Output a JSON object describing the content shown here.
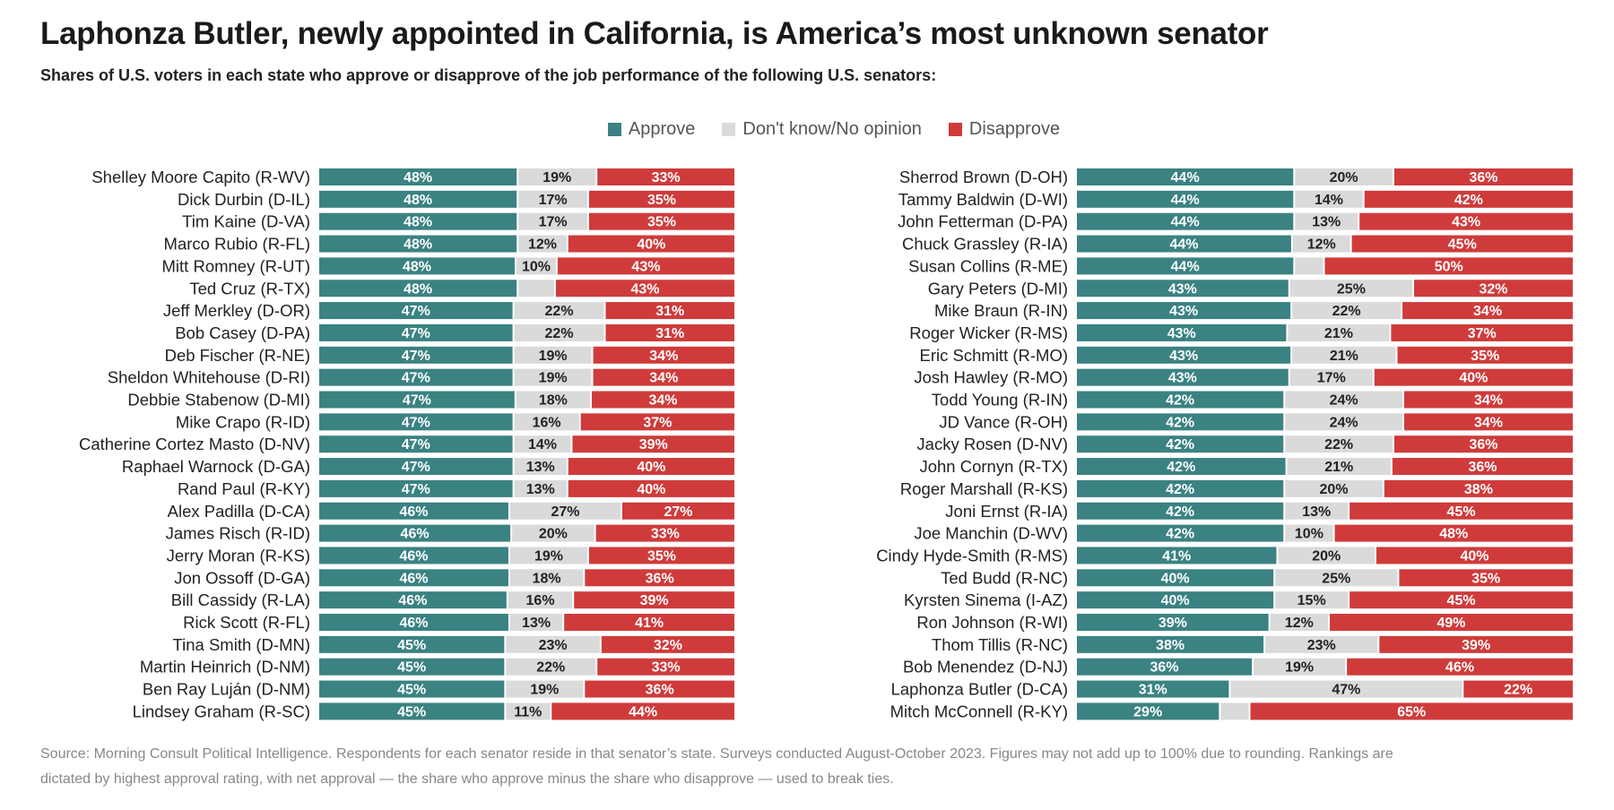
{
  "title": "Laphonza Butler, newly appointed in California, is America’s most unknown senator",
  "subtitle": "Shares of U.S. voters in each state who approve or disapprove of the job performance of the following U.S. senators:",
  "legend": [
    {
      "label": "Approve",
      "color": "#3b8282"
    },
    {
      "label": "Don't know/No opinion",
      "color": "#dadada"
    },
    {
      "label": "Disapprove",
      "color": "#cf3b3b"
    }
  ],
  "footer": "Source: Morning Consult Political Intelligence. Respondents for each senator reside in that senator’s state. Surveys conducted August-October 2023. Figures may not add up to 100% due to rounding. Rankings are dictated by highest approval rating, with net approval — the share who approve minus the share who disapprove — used to break ties.",
  "chart_data": {
    "type": "bar",
    "orientation": "horizontal",
    "stacked": "100%",
    "series_order": [
      "Approve",
      "Don't know/No opinion",
      "Disapprove"
    ],
    "panels": [
      {
        "rows": [
          {
            "senator": "Shelley Moore Capito (R-WV)",
            "approve": 48,
            "dk": 19,
            "disapprove": 33
          },
          {
            "senator": "Dick Durbin (D-IL)",
            "approve": 48,
            "dk": 17,
            "disapprove": 35
          },
          {
            "senator": "Tim Kaine (D-VA)",
            "approve": 48,
            "dk": 17,
            "disapprove": 35
          },
          {
            "senator": "Marco Rubio (R-FL)",
            "approve": 48,
            "dk": 12,
            "disapprove": 40
          },
          {
            "senator": "Mitt Romney (R-UT)",
            "approve": 48,
            "dk": 10,
            "disapprove": 43
          },
          {
            "senator": "Ted Cruz (R-TX)",
            "approve": 48,
            "dk": 9,
            "disapprove": 43
          },
          {
            "senator": "Jeff Merkley (D-OR)",
            "approve": 47,
            "dk": 22,
            "disapprove": 31
          },
          {
            "senator": "Bob Casey (D-PA)",
            "approve": 47,
            "dk": 22,
            "disapprove": 31
          },
          {
            "senator": "Deb Fischer (R-NE)",
            "approve": 47,
            "dk": 19,
            "disapprove": 34
          },
          {
            "senator": "Sheldon Whitehouse (D-RI)",
            "approve": 47,
            "dk": 19,
            "disapprove": 34
          },
          {
            "senator": "Debbie Stabenow (D-MI)",
            "approve": 47,
            "dk": 18,
            "disapprove": 34
          },
          {
            "senator": "Mike Crapo (R-ID)",
            "approve": 47,
            "dk": 16,
            "disapprove": 37
          },
          {
            "senator": "Catherine Cortez Masto (D-NV)",
            "approve": 47,
            "dk": 14,
            "disapprove": 39
          },
          {
            "senator": "Raphael Warnock (D-GA)",
            "approve": 47,
            "dk": 13,
            "disapprove": 40
          },
          {
            "senator": "Rand Paul (R-KY)",
            "approve": 47,
            "dk": 13,
            "disapprove": 40
          },
          {
            "senator": "Alex Padilla (D-CA)",
            "approve": 46,
            "dk": 27,
            "disapprove": 27
          },
          {
            "senator": "James Risch (R-ID)",
            "approve": 46,
            "dk": 20,
            "disapprove": 33
          },
          {
            "senator": "Jerry Moran (R-KS)",
            "approve": 46,
            "dk": 19,
            "disapprove": 35
          },
          {
            "senator": "Jon Ossoff (D-GA)",
            "approve": 46,
            "dk": 18,
            "disapprove": 36
          },
          {
            "senator": "Bill Cassidy (R-LA)",
            "approve": 46,
            "dk": 16,
            "disapprove": 39
          },
          {
            "senator": "Rick Scott (R-FL)",
            "approve": 46,
            "dk": 13,
            "disapprove": 41
          },
          {
            "senator": "Tina Smith (D-MN)",
            "approve": 45,
            "dk": 23,
            "disapprove": 32
          },
          {
            "senator": "Martin Heinrich (D-NM)",
            "approve": 45,
            "dk": 22,
            "disapprove": 33
          },
          {
            "senator": "Ben Ray Luján (D-NM)",
            "approve": 45,
            "dk": 19,
            "disapprove": 36
          },
          {
            "senator": "Lindsey Graham (R-SC)",
            "approve": 45,
            "dk": 11,
            "disapprove": 44
          }
        ]
      },
      {
        "rows": [
          {
            "senator": "Sherrod Brown (D-OH)",
            "approve": 44,
            "dk": 20,
            "disapprove": 36
          },
          {
            "senator": "Tammy Baldwin (D-WI)",
            "approve": 44,
            "dk": 14,
            "disapprove": 42
          },
          {
            "senator": "John Fetterman (D-PA)",
            "approve": 44,
            "dk": 13,
            "disapprove": 43
          },
          {
            "senator": "Chuck Grassley (R-IA)",
            "approve": 44,
            "dk": 12,
            "disapprove": 45
          },
          {
            "senator": "Susan Collins (R-ME)",
            "approve": 44,
            "dk": 6,
            "disapprove": 50
          },
          {
            "senator": "Gary Peters (D-MI)",
            "approve": 43,
            "dk": 25,
            "disapprove": 32
          },
          {
            "senator": "Mike Braun (R-IN)",
            "approve": 43,
            "dk": 22,
            "disapprove": 34
          },
          {
            "senator": "Roger Wicker (R-MS)",
            "approve": 43,
            "dk": 21,
            "disapprove": 37
          },
          {
            "senator": "Eric Schmitt (R-MO)",
            "approve": 43,
            "dk": 21,
            "disapprove": 35
          },
          {
            "senator": "Josh Hawley (R-MO)",
            "approve": 43,
            "dk": 17,
            "disapprove": 40
          },
          {
            "senator": "Todd Young (R-IN)",
            "approve": 42,
            "dk": 24,
            "disapprove": 34
          },
          {
            "senator": "JD Vance (R-OH)",
            "approve": 42,
            "dk": 24,
            "disapprove": 34
          },
          {
            "senator": "Jacky Rosen (D-NV)",
            "approve": 42,
            "dk": 22,
            "disapprove": 36
          },
          {
            "senator": "John Cornyn (R-TX)",
            "approve": 42,
            "dk": 21,
            "disapprove": 36
          },
          {
            "senator": "Roger Marshall (R-KS)",
            "approve": 42,
            "dk": 20,
            "disapprove": 38
          },
          {
            "senator": "Joni Ernst (R-IA)",
            "approve": 42,
            "dk": 13,
            "disapprove": 45
          },
          {
            "senator": "Joe Manchin (D-WV)",
            "approve": 42,
            "dk": 10,
            "disapprove": 48
          },
          {
            "senator": "Cindy Hyde-Smith (R-MS)",
            "approve": 41,
            "dk": 20,
            "disapprove": 40
          },
          {
            "senator": "Ted Budd (R-NC)",
            "approve": 40,
            "dk": 25,
            "disapprove": 35
          },
          {
            "senator": "Kyrsten Sinema (I-AZ)",
            "approve": 40,
            "dk": 15,
            "disapprove": 45
          },
          {
            "senator": "Ron Johnson (R-WI)",
            "approve": 39,
            "dk": 12,
            "disapprove": 49
          },
          {
            "senator": "Thom Tillis (R-NC)",
            "approve": 38,
            "dk": 23,
            "disapprove": 39
          },
          {
            "senator": "Bob Menendez (D-NJ)",
            "approve": 36,
            "dk": 19,
            "disapprove": 46
          },
          {
            "senator": "Laphonza Butler (D-CA)",
            "approve": 31,
            "dk": 47,
            "disapprove": 22
          },
          {
            "senator": "Mitch McConnell (R-KY)",
            "approve": 29,
            "dk": 6,
            "disapprove": 65
          }
        ]
      }
    ],
    "legend_position": "top-center",
    "grid": false
  }
}
